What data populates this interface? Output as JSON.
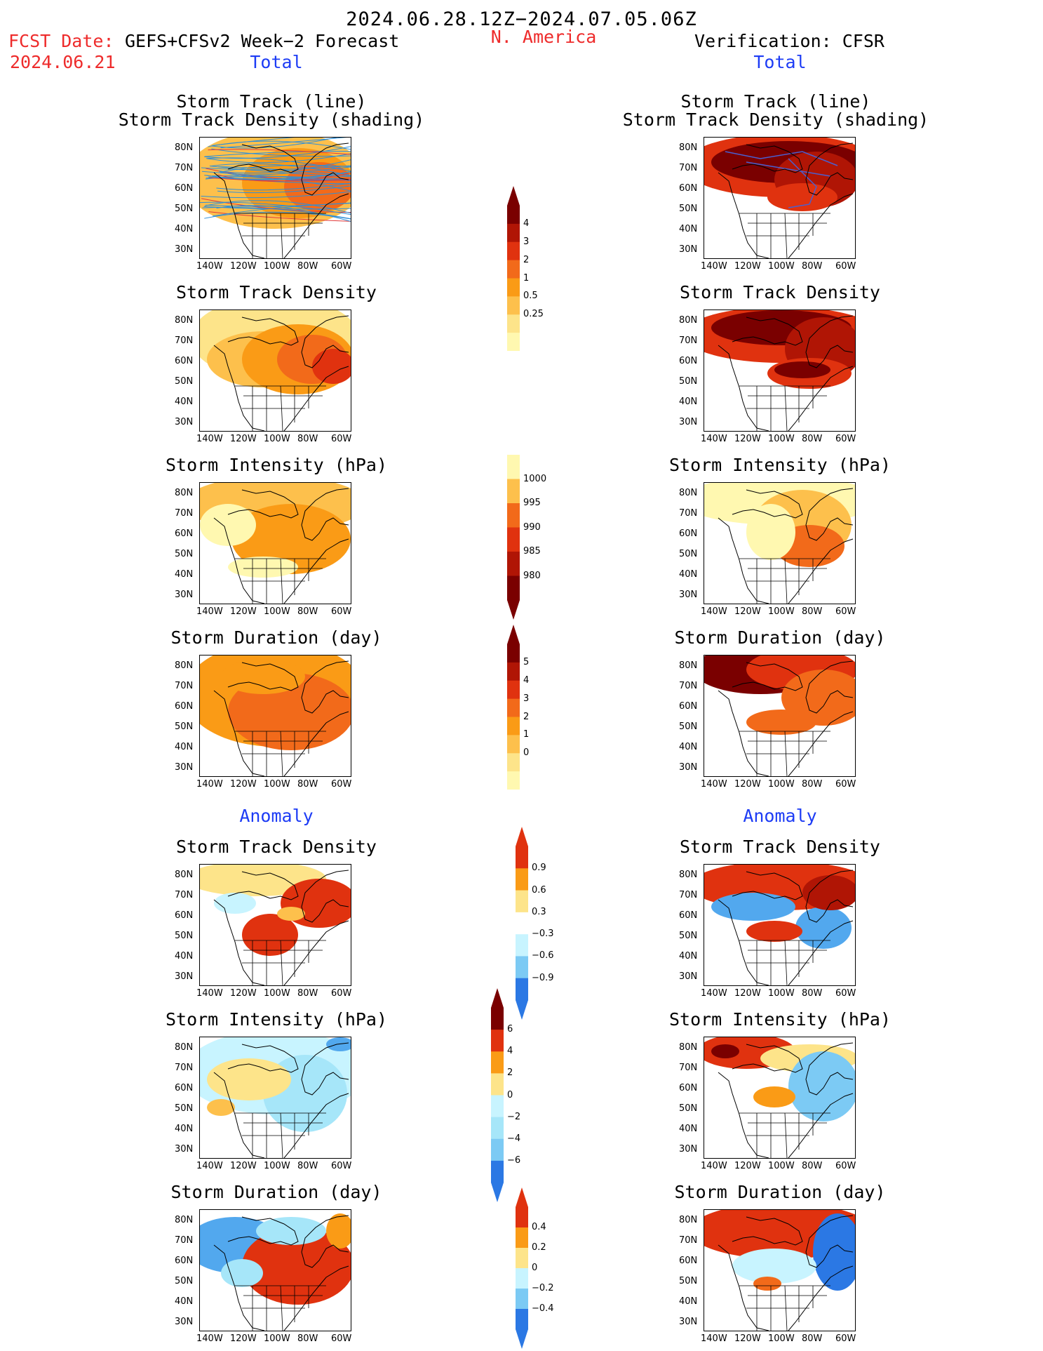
{
  "header": {
    "date_range": "2024.06.28.12Z−2024.07.05.06Z",
    "fcst_label": "FCST Date:",
    "fcst_date": "2024.06.21",
    "model": "GEFS+CFSv2 Week−2 Forecast",
    "region": "N. America",
    "verification": "Verification: CFSR"
  },
  "sections": {
    "total": "Total",
    "anomaly": "Anomaly"
  },
  "panel_titles": {
    "track_line": "Storm Track (line)",
    "track_shading": "Storm Track Density (shading)",
    "track_density": "Storm Track Density",
    "intensity": "Storm Intensity (hPa)",
    "duration": "Storm Duration (day)"
  },
  "axes": {
    "lat_ticks": [
      "80N",
      "70N",
      "60N",
      "50N",
      "40N",
      "30N"
    ],
    "lon_ticks": [
      "140W",
      "120W",
      "100W",
      "80W",
      "60W"
    ]
  },
  "colorbars": {
    "density_total": [
      "4",
      "3",
      "2",
      "1",
      "0.5",
      "0.25"
    ],
    "intensity_total": [
      "1000",
      "995",
      "990",
      "985",
      "980"
    ],
    "duration_total": [
      "5",
      "4",
      "3",
      "2",
      "1",
      "0"
    ],
    "density_anom": [
      "0.9",
      "0.6",
      "0.3",
      "−0.3",
      "−0.6",
      "−0.9"
    ],
    "intensity_anom": [
      "6",
      "4",
      "2",
      "0",
      "−2",
      "−4",
      "−6"
    ],
    "duration_anom": [
      "0.4",
      "0.2",
      "0",
      "−0.2",
      "−0.4"
    ]
  },
  "colors": {
    "warm": [
      "#fff8b0",
      "#fde48a",
      "#fdc04c",
      "#fa9b16",
      "#f26a1a",
      "#e0320f",
      "#b01505",
      "#7a0000"
    ],
    "cool": [
      "#c8f4ff",
      "#a6e6f9",
      "#7ccaf4",
      "#52a8ee",
      "#2b78e4",
      "#1656d4"
    ]
  }
}
